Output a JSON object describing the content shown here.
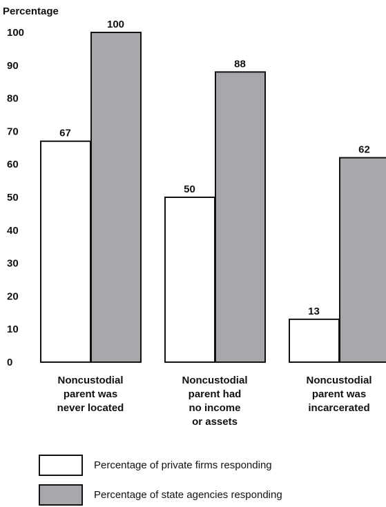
{
  "chart_data": {
    "type": "bar",
    "ylabel": "Percentage",
    "ylim": [
      0,
      100
    ],
    "yticks": [
      0,
      10,
      20,
      30,
      40,
      50,
      60,
      70,
      80,
      90,
      100
    ],
    "categories": [
      [
        "Noncustodial",
        "parent was",
        "never located"
      ],
      [
        "Noncustodial",
        "parent had",
        "no income",
        "or assets"
      ],
      [
        "Noncustodial",
        "parent was",
        "incarcerated"
      ]
    ],
    "series": [
      {
        "name": "Percentage of private firms responding",
        "color": "#ffffff",
        "values": [
          67,
          50,
          13
        ]
      },
      {
        "name": "Percentage of state agencies responding",
        "color": "#a7a8ab",
        "values": [
          100,
          88,
          62
        ]
      }
    ],
    "legend": "bottom-left",
    "grid": false
  }
}
